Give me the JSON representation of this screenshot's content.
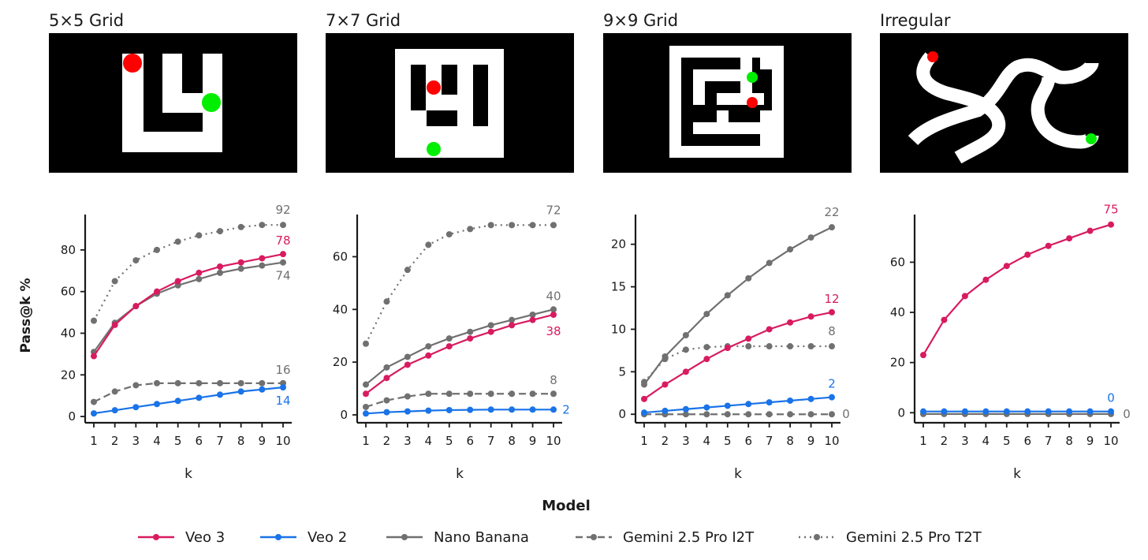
{
  "figure": {
    "ylabel": "Pass@k %",
    "legend_title": "Model",
    "legend_placement": "bottom-center"
  },
  "series_styles": [
    {
      "name": "Veo 3",
      "color": "#d81b60",
      "dash": "solid"
    },
    {
      "name": "Veo 2",
      "color": "#1a73e8",
      "dash": "solid"
    },
    {
      "name": "Nano Banana",
      "color": "#707070",
      "dash": "solid"
    },
    {
      "name": "Gemini 2.5 Pro I2T",
      "color": "#707070",
      "dash": "dashed"
    },
    {
      "name": "Gemini 2.5 Pro T2T",
      "color": "#707070",
      "dash": "dotted"
    }
  ],
  "panels": [
    {
      "title": "5×5 Grid",
      "maze": "5x5 grid maze",
      "start_marker": "red-dot",
      "goal_marker": "green-dot"
    },
    {
      "title": "7×7 Grid",
      "maze": "7x7 grid maze",
      "start_marker": "red-dot",
      "goal_marker": "green-dot"
    },
    {
      "title": "9×9 Grid",
      "maze": "9x9 grid maze",
      "start_marker": "red-dot",
      "goal_marker": "green-dot"
    },
    {
      "title": "Irregular",
      "maze": "irregular maze",
      "start_marker": "red-dot",
      "goal_marker": "green-dot"
    }
  ],
  "chart_data": [
    {
      "type": "line",
      "title": "5×5 Grid",
      "xlabel": "k",
      "ylabel": "Pass@k %",
      "x": [
        1,
        2,
        3,
        4,
        5,
        6,
        7,
        8,
        9,
        10
      ],
      "ylim": [
        -3,
        97
      ],
      "yticks": [
        0,
        20,
        40,
        60,
        80
      ],
      "series": [
        {
          "name": "Veo 3",
          "values": [
            29,
            44,
            53,
            60,
            65,
            69,
            72,
            74,
            76,
            78
          ],
          "end_label": "78"
        },
        {
          "name": "Veo 2",
          "values": [
            1.5,
            3,
            4.5,
            6,
            7.5,
            9,
            10.5,
            12,
            13,
            14
          ],
          "end_label": "14"
        },
        {
          "name": "Nano Banana",
          "values": [
            31,
            45,
            53,
            59,
            63,
            66,
            69,
            71,
            72.5,
            74
          ],
          "end_label": "74"
        },
        {
          "name": "Gemini 2.5 Pro I2T",
          "values": [
            7,
            12,
            15,
            16,
            16,
            16,
            16,
            16,
            16,
            16
          ],
          "end_label": "16"
        },
        {
          "name": "Gemini 2.5 Pro T2T",
          "values": [
            46,
            65,
            75,
            80,
            84,
            87,
            89,
            91,
            92,
            92
          ],
          "end_label": "92"
        }
      ]
    },
    {
      "type": "line",
      "title": "7×7 Grid",
      "xlabel": "k",
      "ylabel": "",
      "x": [
        1,
        2,
        3,
        4,
        5,
        6,
        7,
        8,
        9,
        10
      ],
      "ylim": [
        -3,
        76
      ],
      "yticks": [
        0,
        20,
        40,
        60
      ],
      "series": [
        {
          "name": "Veo 3",
          "values": [
            8,
            14,
            19,
            22.5,
            26,
            29,
            31.5,
            34,
            36,
            38
          ],
          "end_label": "38"
        },
        {
          "name": "Veo 2",
          "values": [
            0.5,
            1,
            1.3,
            1.6,
            1.8,
            1.9,
            2,
            2,
            2,
            2
          ],
          "end_label": "2"
        },
        {
          "name": "Nano Banana",
          "values": [
            11.5,
            18,
            22,
            26,
            29,
            31.5,
            34,
            36,
            38,
            40
          ],
          "end_label": "40"
        },
        {
          "name": "Gemini 2.5 Pro I2T",
          "values": [
            3,
            5.5,
            7,
            8,
            8,
            8,
            8,
            8,
            8,
            8
          ],
          "end_label": "8"
        },
        {
          "name": "Gemini 2.5 Pro T2T",
          "values": [
            27,
            43,
            55,
            64.5,
            68.5,
            70.5,
            72,
            72,
            72,
            72
          ],
          "end_label": "72"
        }
      ]
    },
    {
      "type": "line",
      "title": "9×9 Grid",
      "xlabel": "k",
      "ylabel": "",
      "x": [
        1,
        2,
        3,
        4,
        5,
        6,
        7,
        8,
        9,
        10
      ],
      "ylim": [
        -1,
        23.5
      ],
      "yticks": [
        0,
        5,
        10,
        15,
        20
      ],
      "series": [
        {
          "name": "Veo 3",
          "values": [
            1.8,
            3.5,
            5,
            6.5,
            7.8,
            8.9,
            10,
            10.8,
            11.5,
            12
          ],
          "end_label": "12"
        },
        {
          "name": "Veo 2",
          "values": [
            0.2,
            0.4,
            0.6,
            0.8,
            1,
            1.2,
            1.4,
            1.6,
            1.8,
            2
          ],
          "end_label": "2"
        },
        {
          "name": "Nano Banana",
          "values": [
            3.5,
            6.8,
            9.3,
            11.8,
            14,
            16,
            17.8,
            19.4,
            20.8,
            22
          ],
          "end_label": "22"
        },
        {
          "name": "Gemini 2.5 Pro I2T",
          "values": [
            0,
            0,
            0,
            0,
            0,
            0,
            0,
            0,
            0,
            0
          ],
          "end_label": "0"
        },
        {
          "name": "Gemini 2.5 Pro T2T",
          "values": [
            3.8,
            6.5,
            7.6,
            7.9,
            8,
            8,
            8,
            8,
            8,
            8
          ],
          "end_label": "8"
        }
      ]
    },
    {
      "type": "line",
      "title": "Irregular",
      "xlabel": "k",
      "ylabel": "",
      "x": [
        1,
        2,
        3,
        4,
        5,
        6,
        7,
        8,
        9,
        10
      ],
      "ylim": [
        -4,
        79
      ],
      "yticks": [
        0,
        20,
        40,
        60
      ],
      "series": [
        {
          "name": "Veo 3",
          "values": [
            23,
            37,
            46.5,
            53,
            58.5,
            63,
            66.5,
            69.5,
            72.5,
            75
          ],
          "end_label": "75"
        },
        {
          "name": "Veo 2",
          "values": [
            0.5,
            0.5,
            0.5,
            0.5,
            0.5,
            0.5,
            0.5,
            0.5,
            0.5,
            0.5
          ],
          "end_label": "0"
        },
        {
          "name": "Nano Banana",
          "values": [
            -0.5,
            -0.5,
            -0.5,
            -0.5,
            -0.5,
            -0.5,
            -0.5,
            -0.5,
            -0.5,
            -0.5
          ],
          "end_label": "0"
        }
      ]
    }
  ]
}
